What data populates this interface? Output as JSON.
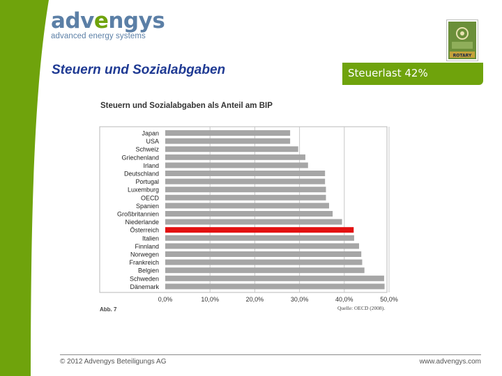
{
  "brand": {
    "name_prefix": "adv",
    "name_v": "e",
    "name_suffix": "ngys",
    "tagline": "advanced energy systems",
    "accent_green": "#6fa30c",
    "accent_blue": "#5b7fa6",
    "title_blue": "#1f3a93"
  },
  "slide": {
    "title": "Steuern und Sozialabgaben",
    "badge": "Steuerlast 42%"
  },
  "rotary": {
    "label": "ROTARY"
  },
  "footer": {
    "copyright": "© 2012 Advengys Beteiligungs AG",
    "url": "www.advengys.com"
  },
  "chart_data": {
    "type": "bar",
    "orientation": "horizontal",
    "title": "Steuern und Sozialabgaben als Anteil am BIP",
    "figure_label": "Abb. 7",
    "source": "Quelle: OECD (2008).",
    "categories": [
      "Japan",
      "USA",
      "Schweiz",
      "Griechenland",
      "Irland",
      "Deutschland",
      "Portugal",
      "Luxemburg",
      "OECD",
      "Spanien",
      "Großbritannien",
      "Niederlande",
      "Österreich",
      "Italien",
      "Finnland",
      "Norwegen",
      "Frankreich",
      "Belgien",
      "Schweden",
      "Dänemark"
    ],
    "values": [
      27.9,
      27.9,
      29.7,
      31.3,
      31.9,
      35.7,
      35.7,
      35.9,
      35.9,
      36.6,
      37.4,
      39.5,
      42.1,
      42.2,
      43.3,
      43.8,
      44.0,
      44.5,
      48.9,
      49.0
    ],
    "highlight": "Österreich",
    "bar_color": "#a6a6a6",
    "highlight_color": "#e31010",
    "x_ticks": [
      "0,0%",
      "10,0%",
      "20,0%",
      "30,0%",
      "40,0%",
      "50,0%"
    ],
    "x_tick_values": [
      0,
      10,
      20,
      30,
      40,
      50
    ],
    "xlim": [
      0,
      50
    ],
    "xlabel": "",
    "ylabel": "",
    "grid": true
  }
}
